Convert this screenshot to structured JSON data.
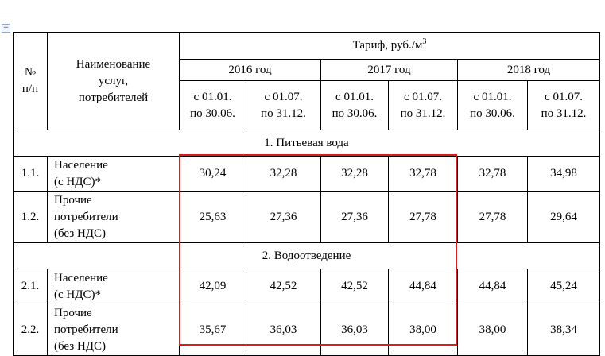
{
  "table": {
    "header": {
      "num": [
        "№",
        "п/п"
      ],
      "name": [
        "Наименование",
        "услуг,",
        "потребителей"
      ],
      "tariff_label": "Тариф, руб./м",
      "tariff_unit_sup": "3",
      "years": [
        "2016 год",
        "2017 год",
        "2018 год"
      ],
      "periods": [
        [
          "с 01.01.",
          "по 30.06."
        ],
        [
          "с 01.07.",
          "по 31.12."
        ],
        [
          "с 01.01.",
          "по 30.06."
        ],
        [
          "с 01.07.",
          "по 31.12."
        ],
        [
          "с 01.01.",
          "по 30.06."
        ],
        [
          "с 01.07.",
          "по 31.12."
        ]
      ]
    },
    "sections": [
      {
        "title": "1. Питьевая вода",
        "rows": [
          {
            "num": "1.1.",
            "name": [
              "Население",
              "(с НДС)*"
            ],
            "values": [
              "30,24",
              "32,28",
              "32,28",
              "32,78",
              "32,78",
              "34,98"
            ]
          },
          {
            "num": "1.2.",
            "name": [
              "Прочие",
              "потребители",
              "(без НДС)"
            ],
            "values": [
              "25,63",
              "27,36",
              "27,36",
              "27,78",
              "27,78",
              "29,64"
            ]
          }
        ]
      },
      {
        "title": "2. Водоотведение",
        "rows": [
          {
            "num": "2.1.",
            "name": [
              "Население",
              "(с НДС)*"
            ],
            "values": [
              "42,09",
              "42,52",
              "42,52",
              "44,84",
              "44,84",
              "45,24"
            ]
          },
          {
            "num": "2.2.",
            "name": [
              "Прочие",
              "потребители",
              "(без НДС)"
            ],
            "values": [
              "35,67",
              "36,03",
              "36,03",
              "38,00",
              "38,00",
              "38,34"
            ]
          }
        ]
      }
    ]
  },
  "highlight_color": "#d91e1e"
}
